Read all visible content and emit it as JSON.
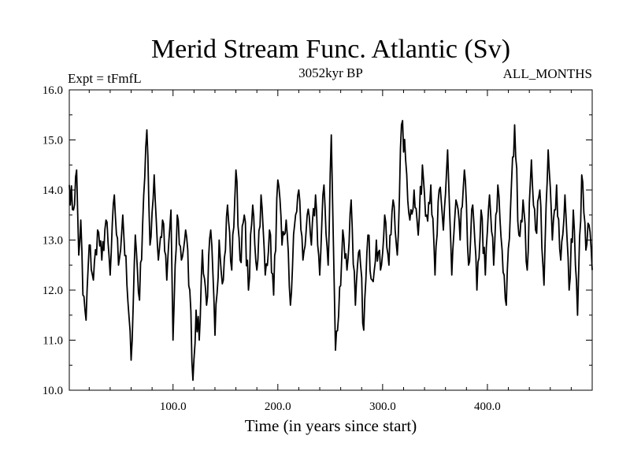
{
  "chart_data": {
    "type": "line",
    "title": "Merid Stream Func. Atlantic (Sv)",
    "subtitle_left": "Expt = tFmfL",
    "subtitle_center": "3052kyr BP",
    "subtitle_right": "ALL_MONTHS",
    "xlabel": "Time (in years since start)",
    "ylabel": "",
    "xlim": [
      1,
      500
    ],
    "ylim": [
      10.0,
      16.0
    ],
    "x_ticks": [
      100,
      200,
      300,
      400
    ],
    "x_tick_labels": [
      "100.0",
      "200.0",
      "300.0",
      "400.0"
    ],
    "y_ticks": [
      10,
      11,
      12,
      13,
      14,
      15,
      16
    ],
    "y_tick_labels": [
      "10.0",
      "11.0",
      "12.0",
      "13.0",
      "14.0",
      "15.0",
      "16.0"
    ],
    "series": [
      {
        "name": "Merid Stream Func. Atlantic",
        "color": "#000000",
        "anchors": [
          [
            1,
            14.1
          ],
          [
            5,
            13.6
          ],
          [
            8,
            14.4
          ],
          [
            10,
            12.7
          ],
          [
            12,
            13.4
          ],
          [
            14,
            11.9
          ],
          [
            17,
            11.4
          ],
          [
            20,
            12.9
          ],
          [
            24,
            12.2
          ],
          [
            28,
            13.2
          ],
          [
            32,
            12.6
          ],
          [
            36,
            13.4
          ],
          [
            40,
            12.3
          ],
          [
            44,
            13.9
          ],
          [
            48,
            12.5
          ],
          [
            52,
            13.5
          ],
          [
            56,
            12.1
          ],
          [
            60,
            10.6
          ],
          [
            64,
            13.1
          ],
          [
            68,
            11.8
          ],
          [
            72,
            13.9
          ],
          [
            75,
            15.2
          ],
          [
            78,
            12.9
          ],
          [
            82,
            14.3
          ],
          [
            86,
            12.6
          ],
          [
            90,
            13.4
          ],
          [
            94,
            12.2
          ],
          [
            98,
            13.6
          ],
          [
            100,
            11.0
          ],
          [
            104,
            13.5
          ],
          [
            108,
            12.6
          ],
          [
            112,
            13.2
          ],
          [
            116,
            12.0
          ],
          [
            119,
            10.2
          ],
          [
            122,
            11.6
          ],
          [
            125,
            11.0
          ],
          [
            128,
            12.8
          ],
          [
            132,
            11.7
          ],
          [
            136,
            13.2
          ],
          [
            140,
            11.1
          ],
          [
            144,
            13.0
          ],
          [
            148,
            12.2
          ],
          [
            152,
            13.7
          ],
          [
            156,
            12.4
          ],
          [
            160,
            14.4
          ],
          [
            164,
            12.6
          ],
          [
            168,
            13.5
          ],
          [
            172,
            12.0
          ],
          [
            176,
            13.7
          ],
          [
            180,
            12.4
          ],
          [
            184,
            13.9
          ],
          [
            188,
            12.3
          ],
          [
            192,
            13.2
          ],
          [
            196,
            11.9
          ],
          [
            200,
            14.2
          ],
          [
            204,
            12.9
          ],
          [
            208,
            13.4
          ],
          [
            212,
            11.7
          ],
          [
            216,
            13.3
          ],
          [
            220,
            14.0
          ],
          [
            224,
            12.6
          ],
          [
            228,
            13.5
          ],
          [
            232,
            12.9
          ],
          [
            236,
            13.9
          ],
          [
            240,
            12.3
          ],
          [
            244,
            14.1
          ],
          [
            248,
            12.5
          ],
          [
            251,
            15.1
          ],
          [
            255,
            10.8
          ],
          [
            258,
            11.5
          ],
          [
            262,
            13.2
          ],
          [
            266,
            12.4
          ],
          [
            270,
            13.8
          ],
          [
            274,
            11.7
          ],
          [
            278,
            12.8
          ],
          [
            282,
            11.2
          ],
          [
            286,
            13.1
          ],
          [
            290,
            12.2
          ],
          [
            294,
            13.0
          ],
          [
            298,
            12.4
          ],
          [
            302,
            13.5
          ],
          [
            306,
            12.5
          ],
          [
            310,
            13.8
          ],
          [
            314,
            12.7
          ],
          [
            318,
            15.3
          ],
          [
            322,
            14.6
          ],
          [
            326,
            13.4
          ],
          [
            330,
            14.0
          ],
          [
            334,
            13.1
          ],
          [
            338,
            14.5
          ],
          [
            342,
            13.5
          ],
          [
            346,
            14.1
          ],
          [
            350,
            12.3
          ],
          [
            354,
            14.0
          ],
          [
            358,
            13.2
          ],
          [
            362,
            14.8
          ],
          [
            366,
            12.3
          ],
          [
            370,
            13.8
          ],
          [
            374,
            13.0
          ],
          [
            378,
            14.4
          ],
          [
            382,
            12.5
          ],
          [
            386,
            13.7
          ],
          [
            390,
            12.0
          ],
          [
            394,
            13.6
          ],
          [
            398,
            12.3
          ],
          [
            402,
            13.9
          ],
          [
            406,
            12.5
          ],
          [
            410,
            14.1
          ],
          [
            414,
            12.8
          ],
          [
            418,
            11.7
          ],
          [
            422,
            13.6
          ],
          [
            426,
            15.3
          ],
          [
            430,
            13.1
          ],
          [
            434,
            13.8
          ],
          [
            438,
            12.4
          ],
          [
            442,
            14.6
          ],
          [
            446,
            13.2
          ],
          [
            450,
            14.0
          ],
          [
            454,
            12.1
          ],
          [
            458,
            14.8
          ],
          [
            462,
            13.0
          ],
          [
            466,
            14.1
          ],
          [
            470,
            12.6
          ],
          [
            474,
            13.9
          ],
          [
            478,
            12.0
          ],
          [
            482,
            13.6
          ],
          [
            486,
            11.5
          ],
          [
            490,
            14.3
          ],
          [
            494,
            12.8
          ],
          [
            497,
            13.3
          ],
          [
            500,
            12.4
          ]
        ]
      }
    ]
  }
}
